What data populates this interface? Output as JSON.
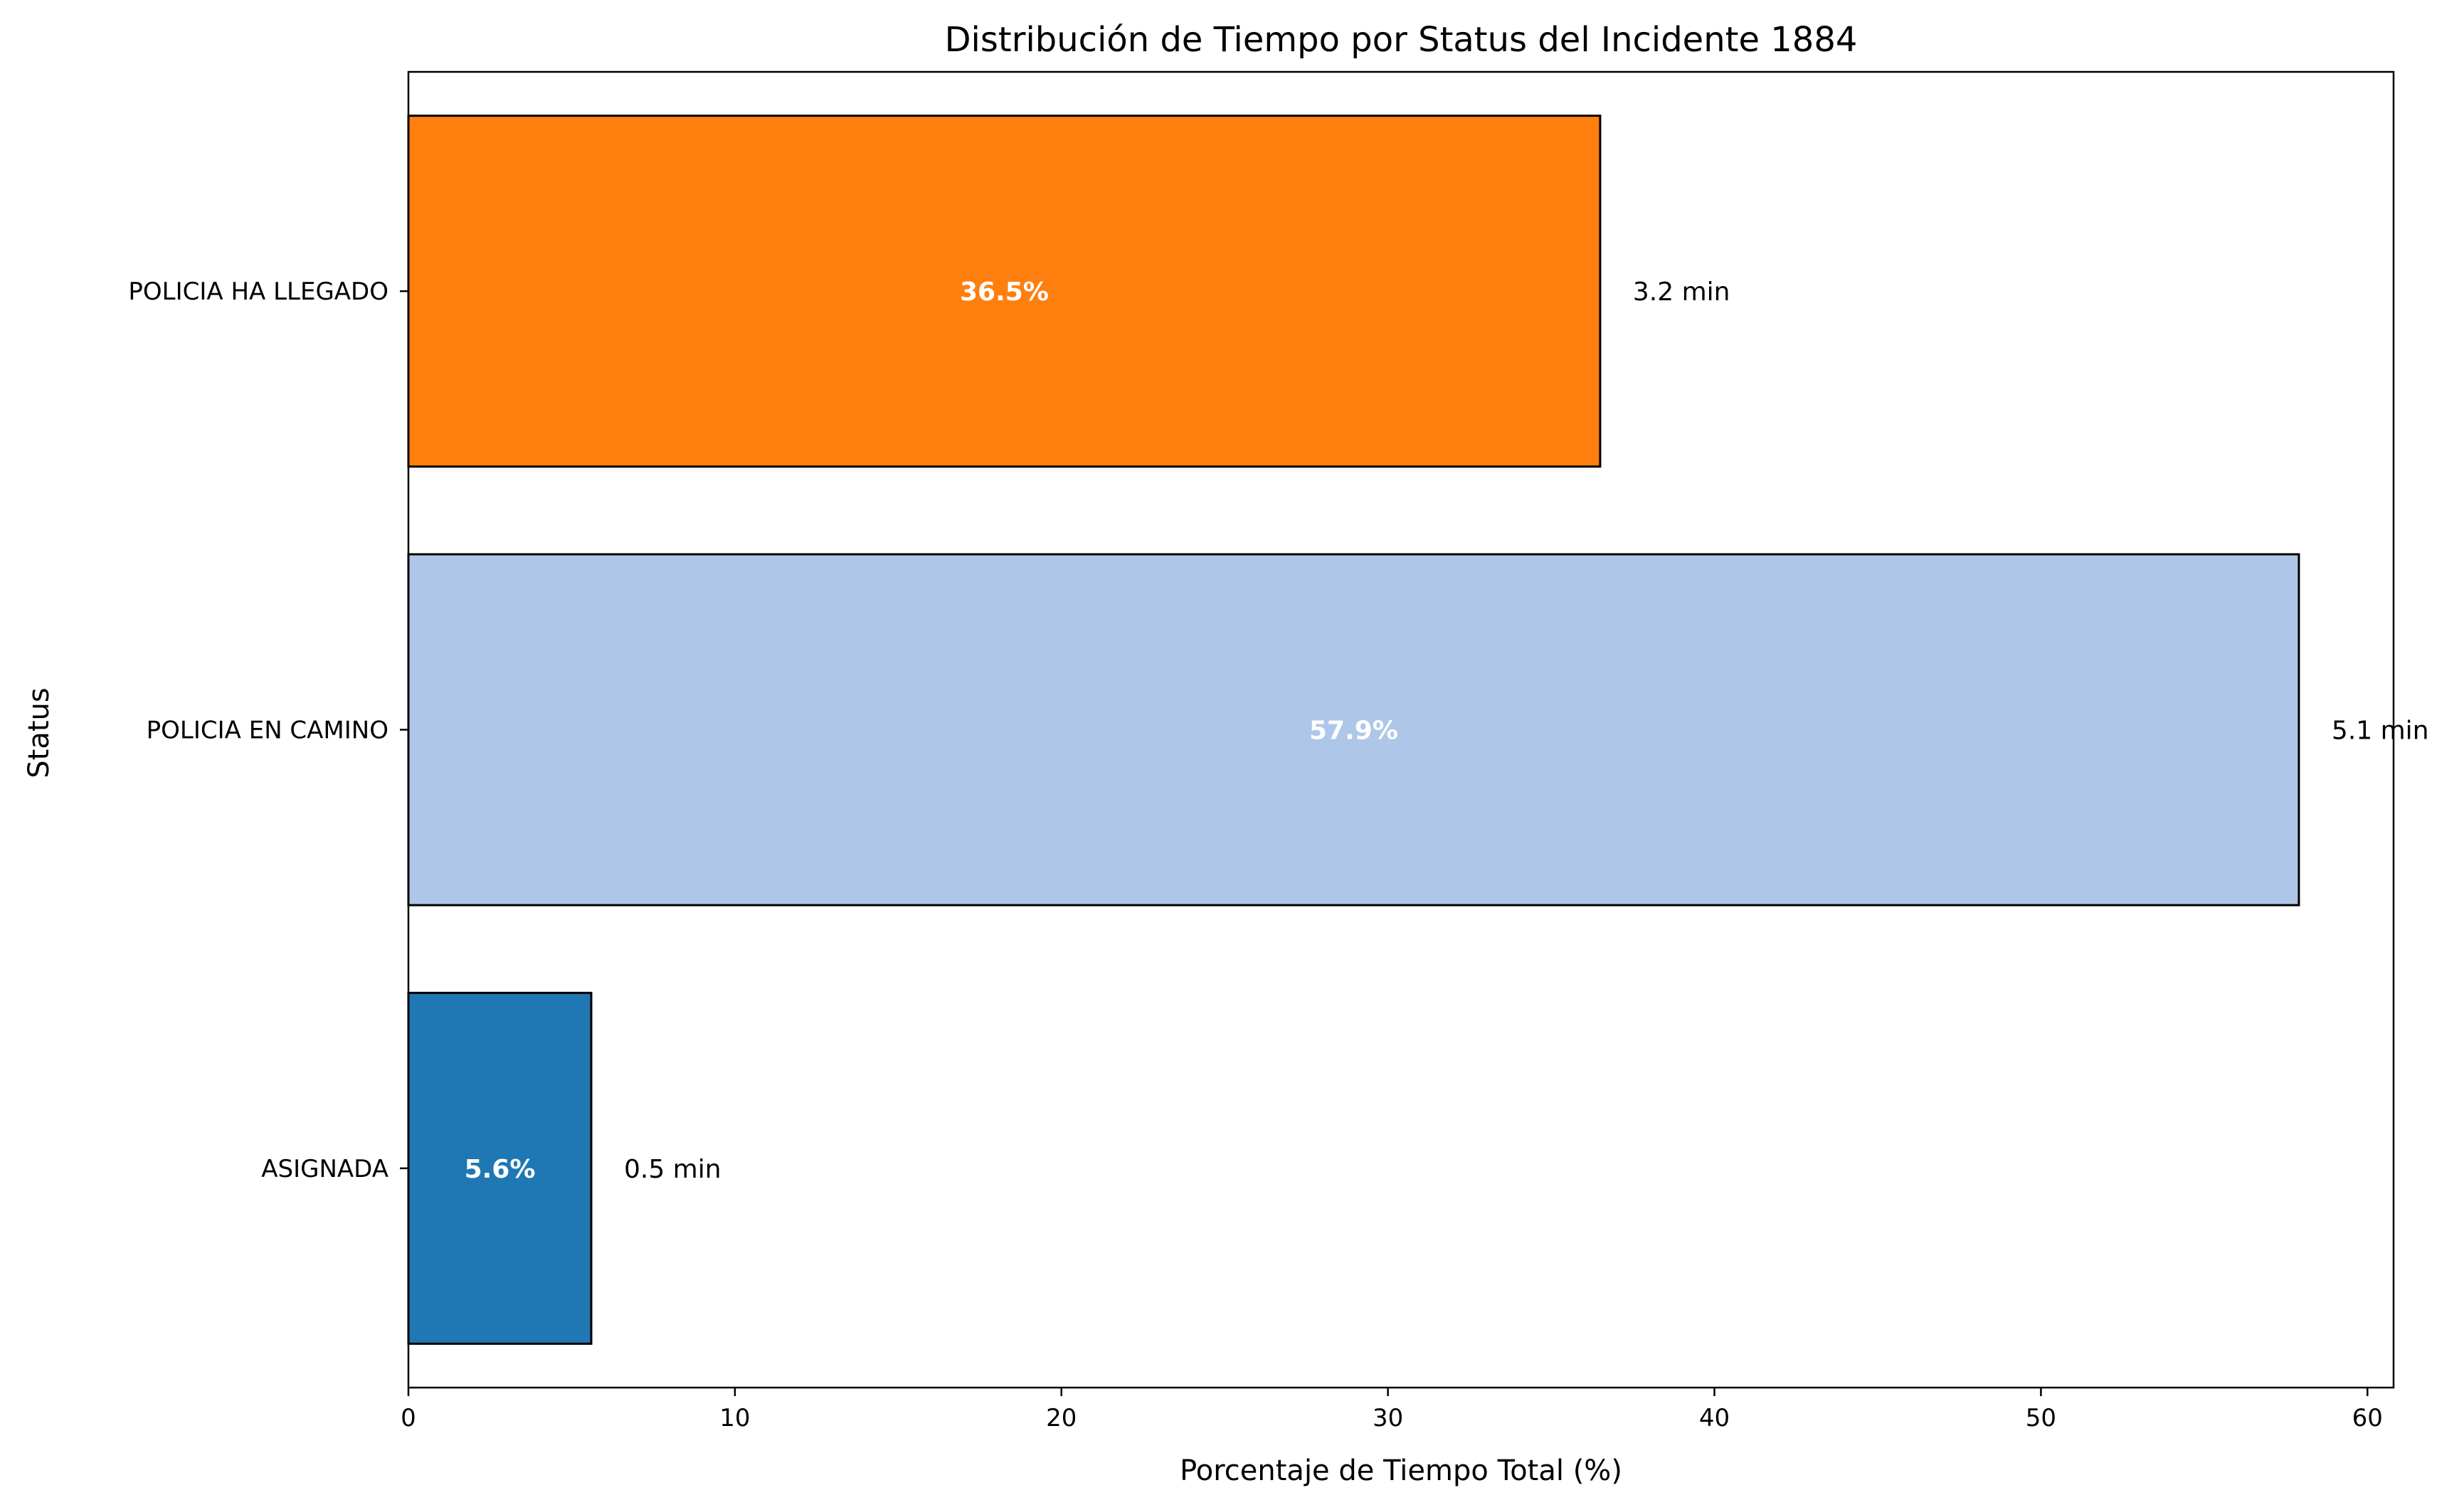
{
  "chart_data": {
    "type": "bar",
    "orientation": "horizontal",
    "title": "Distribución de Tiempo por Status del Incidente 1884",
    "xlabel": "Porcentaje de Tiempo Total (%)",
    "ylabel": "Status",
    "xlim": [
      0,
      60.8
    ],
    "xticks": [
      0,
      10,
      20,
      30,
      40,
      50,
      60
    ],
    "grid": false,
    "legend": "none",
    "categories": [
      "ASIGNADA",
      "POLICIA EN CAMINO",
      "POLICIA HA LLEGADO"
    ],
    "values": [
      5.6,
      57.9,
      36.5
    ],
    "value_labels": [
      "5.6%",
      "57.9%",
      "36.5%"
    ],
    "duration_labels": [
      "0.5 min",
      "5.1 min",
      "3.2 min"
    ],
    "colors": [
      "#1f77b4",
      "#aec7e8",
      "#ff7f0e"
    ]
  }
}
